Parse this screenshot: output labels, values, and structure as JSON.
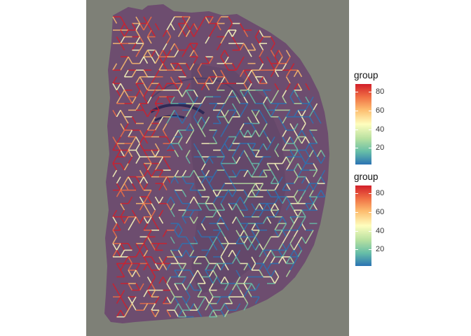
{
  "legends": [
    {
      "title": "group",
      "ticks": [
        "20",
        "40",
        "60",
        "80"
      ],
      "tick_values": [
        20,
        40,
        60,
        80
      ],
      "range": [
        1,
        90
      ]
    },
    {
      "title": "group",
      "ticks": [
        "20",
        "40",
        "60",
        "80"
      ],
      "tick_values": [
        20,
        40,
        60,
        80
      ],
      "range": [
        1,
        90
      ]
    }
  ],
  "colors": {
    "panel_background": "#7e8077",
    "tissue": "#6d4d6f",
    "tissue_dark": "#5a3d5e",
    "tract": "#2f2a56",
    "palette": [
      "#2b73b3",
      "#66bea7",
      "#b6e0a0",
      "#fefebe",
      "#fdbd6f",
      "#f06f44",
      "#d21f2a"
    ]
  }
}
